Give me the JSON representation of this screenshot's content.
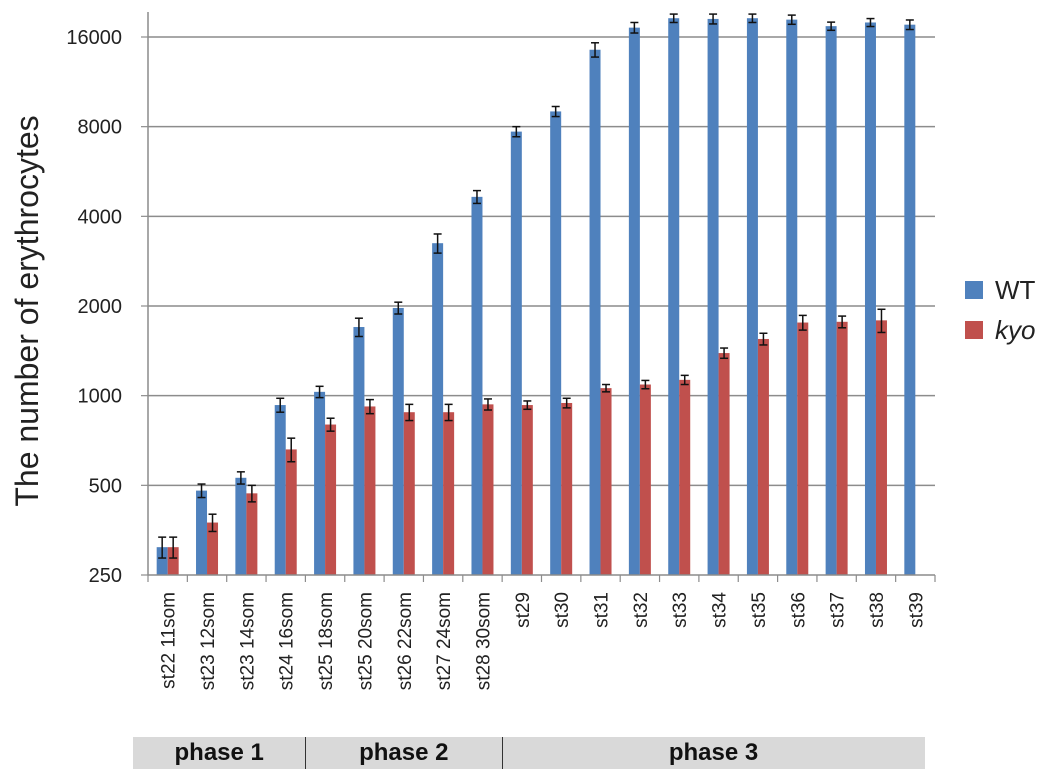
{
  "chart_data": {
    "type": "bar",
    "title": "",
    "xlabel": "",
    "ylabel": "The number of erythrocytes",
    "yscale": "log2",
    "ylim": [
      250,
      18000
    ],
    "yticks": [
      250,
      500,
      1000,
      2000,
      4000,
      8000,
      16000
    ],
    "grid": true,
    "legend_position": "right",
    "categories": [
      "st22 11som",
      "st23 12som",
      "st23 14som",
      "st24 16som",
      "st25 18som",
      "st25 20som",
      "st26 22som",
      "st27 24som",
      "st28 30som",
      "st29",
      "st30",
      "st31",
      "st32",
      "st33",
      "st34",
      "st35",
      "st36",
      "st37",
      "st38",
      "st39"
    ],
    "series": [
      {
        "name": "WT",
        "color": "#4f81bd",
        "values": [
          310,
          480,
          530,
          930,
          1030,
          1700,
          1970,
          3250,
          4650,
          7700,
          9000,
          14500,
          17200,
          18500,
          18400,
          18500,
          18300,
          17400,
          17900,
          17600
        ],
        "errors": [
          25,
          25,
          25,
          50,
          45,
          120,
          90,
          240,
          230,
          300,
          350,
          800,
          700,
          600,
          700,
          600,
          650,
          550,
          550,
          650
        ]
      },
      {
        "name": "kyo",
        "color": "#c0504d",
        "values": [
          310,
          375,
          470,
          660,
          800,
          920,
          880,
          880,
          935,
          930,
          945,
          1060,
          1090,
          1130,
          1390,
          1550,
          1760,
          1770,
          1790,
          null
        ],
        "errors": [
          25,
          25,
          30,
          60,
          40,
          50,
          55,
          55,
          40,
          30,
          35,
          30,
          35,
          40,
          55,
          70,
          100,
          80,
          160,
          null
        ]
      }
    ]
  },
  "legend": [
    {
      "label": "WT",
      "color": "#4f81bd"
    },
    {
      "label": "kyo",
      "color": "#c0504d"
    }
  ],
  "phases": [
    {
      "label": "phase 1",
      "count": 4
    },
    {
      "label": "phase 2",
      "count": 5
    },
    {
      "label": "phase 3",
      "count": 11
    }
  ]
}
